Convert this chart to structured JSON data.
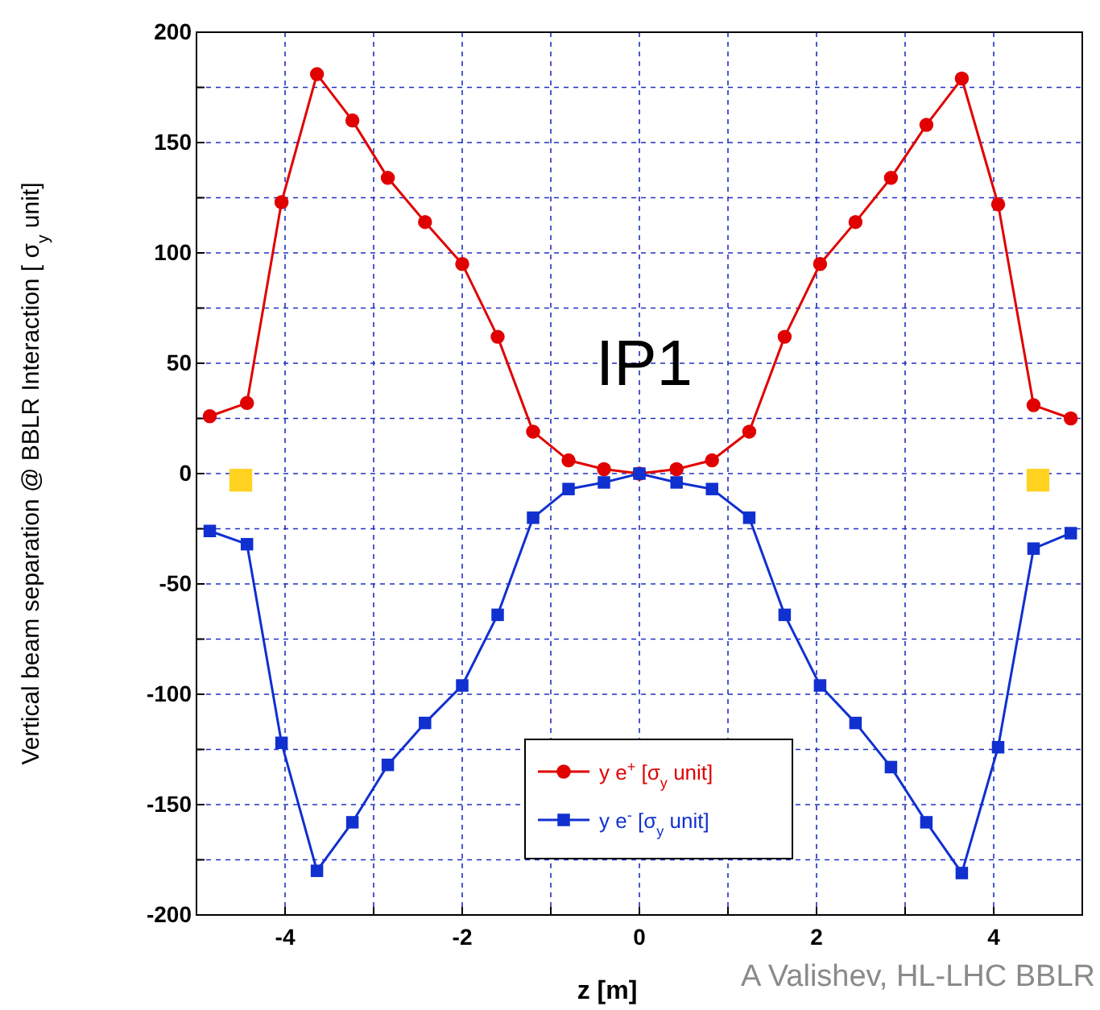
{
  "chart_data": {
    "type": "line",
    "xlabel": "z [m]",
    "ylabel": "Vertical beam separation @ BBLR Interaction [ σ$_{y}$ unit]",
    "xlim": [
      -5,
      5
    ],
    "xticks": [
      {
        "value": -5,
        "label": null
      },
      -4,
      {
        "value": -3,
        "label": null
      },
      -2,
      {
        "value": -1,
        "label": null
      },
      0,
      {
        "value": 1,
        "label": null
      },
      2,
      {
        "value": 3,
        "label": null
      },
      4,
      {
        "value": 5,
        "label": null
      }
    ],
    "ylim": [
      -200,
      200
    ],
    "yticks": [
      -200,
      {
        "value": -175,
        "label": null
      },
      -150,
      {
        "value": -125,
        "label": null
      },
      -100,
      {
        "value": -75,
        "label": null
      },
      -50,
      {
        "value": -25,
        "label": null
      },
      0,
      {
        "value": 25,
        "label": null
      },
      50,
      {
        "value": 75,
        "label": null
      },
      100,
      {
        "value": 125,
        "label": null
      },
      150,
      {
        "value": 175,
        "label": null
      },
      200
    ],
    "grid": true,
    "legend": "bottom",
    "line_style": "solid",
    "x": [
      -4.85,
      -4.43,
      -4.04,
      -3.64,
      -3.24,
      -2.84,
      -2.42,
      -2.0,
      -1.6,
      -1.2,
      -0.8,
      -0.4,
      0,
      0.42,
      0.82,
      1.24,
      1.64,
      2.04,
      2.44,
      2.84,
      3.24,
      3.64,
      4.05,
      4.45,
      4.87
    ],
    "series": [
      {
        "name": "y e$^{+}$ [σ$_{y}$ unit]",
        "color": "#e00000",
        "marker": "circle",
        "values": [
          26,
          32,
          123,
          181,
          160,
          134,
          114,
          95,
          62,
          19,
          6,
          2,
          0,
          2,
          6,
          19,
          62,
          95,
          114,
          134,
          158,
          179,
          122,
          31,
          25
        ]
      },
      {
        "name": "y e$^{-}$ [σ$_{y}$ unit]",
        "color": "#1030d0",
        "marker": "square",
        "values": [
          -26,
          -32,
          -122,
          -180,
          -158,
          -132,
          -113,
          -96,
          -64,
          -20,
          -7,
          -4,
          0,
          -4,
          -7,
          -20,
          -64,
          -96,
          -113,
          -133,
          -158,
          -181,
          -124,
          -34,
          -27
        ]
      },
      {
        "type": "scatter",
        "color": "#ffd21f",
        "marker": "square",
        "x": [
          -4.5,
          4.5
        ],
        "values": [
          -3,
          -3
        ]
      }
    ],
    "annotations": [
      "IP1",
      "A Valishev, HL-LHC BBLR"
    ]
  }
}
